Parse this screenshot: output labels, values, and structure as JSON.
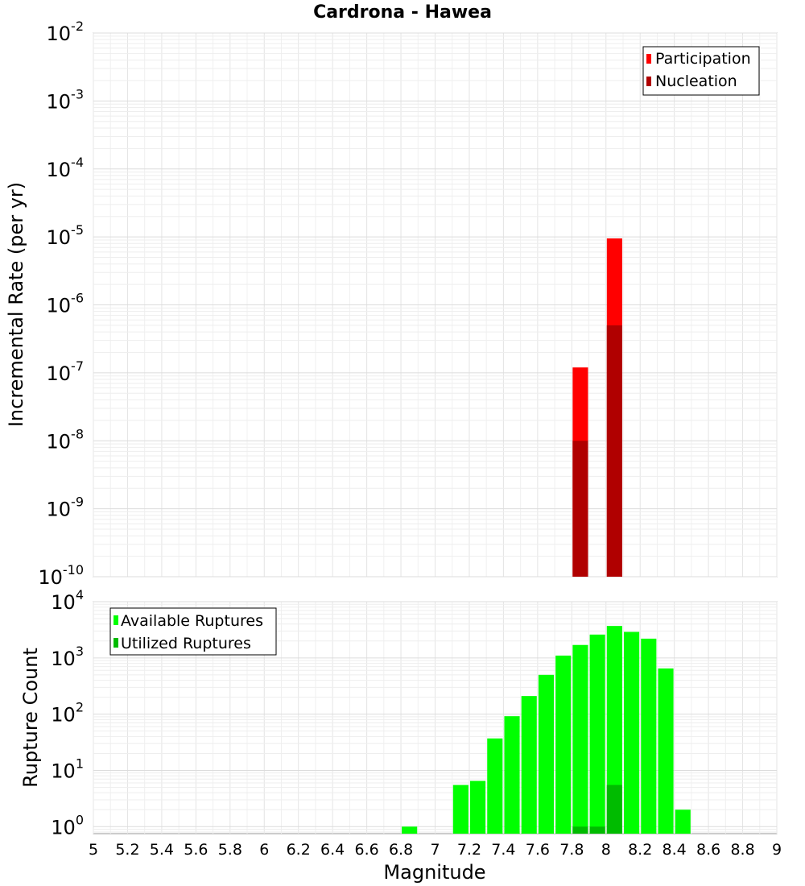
{
  "chart_data": [
    {
      "type": "bar",
      "title": "Cardrona - Hawea",
      "xlabel": "",
      "ylabel": "Incremental Rate (per yr)",
      "yscale": "log",
      "xlim": [
        5,
        9
      ],
      "ylim": [
        1e-10,
        0.01
      ],
      "ytick_exponents": [
        "-10",
        "-9",
        "-8",
        "-7",
        "-6",
        "-5",
        "-4",
        "-3",
        "-2"
      ],
      "grid": true,
      "legend_position": "top-right",
      "bar_width": 0.09,
      "series": [
        {
          "name": "Participation",
          "color": "#ff0000",
          "x": [
            7.85,
            8.05
          ],
          "values": [
            1.2e-07,
            9.5e-06
          ]
        },
        {
          "name": "Nucleation",
          "color": "#b00000",
          "x": [
            7.85,
            8.05
          ],
          "values": [
            1e-08,
            5e-07
          ]
        }
      ]
    },
    {
      "type": "bar",
      "title": "",
      "xlabel": "Magnitude",
      "ylabel": "Rupture Count",
      "yscale": "log",
      "xlim": [
        5,
        9
      ],
      "ylim": [
        0.75,
        10000
      ],
      "ytick_exponents": [
        "0",
        "1",
        "2",
        "3",
        "4"
      ],
      "grid": true,
      "legend_position": "top-left",
      "bar_width": 0.09,
      "xticks": [
        "5",
        "5.2",
        "5.4",
        "5.6",
        "5.8",
        "6",
        "6.2",
        "6.4",
        "6.6",
        "6.8",
        "7",
        "7.2",
        "7.4",
        "7.6",
        "7.8",
        "8",
        "8.2",
        "8.4",
        "8.6",
        "8.8",
        "9"
      ],
      "series": [
        {
          "name": "Available Ruptures",
          "color": "#00ff00",
          "x": [
            6.85,
            7.15,
            7.25,
            7.35,
            7.45,
            7.55,
            7.65,
            7.75,
            7.85,
            7.95,
            8.05,
            8.15,
            8.25,
            8.35,
            8.45
          ],
          "values": [
            1,
            5.5,
            6.5,
            37,
            92,
            210,
            500,
            1100,
            1700,
            2600,
            3700,
            2900,
            2200,
            650,
            2
          ]
        },
        {
          "name": "Utilized Ruptures",
          "color": "#00bb00",
          "x": [
            7.85,
            7.95,
            8.05
          ],
          "values": [
            1,
            1,
            5.5
          ]
        }
      ]
    }
  ]
}
